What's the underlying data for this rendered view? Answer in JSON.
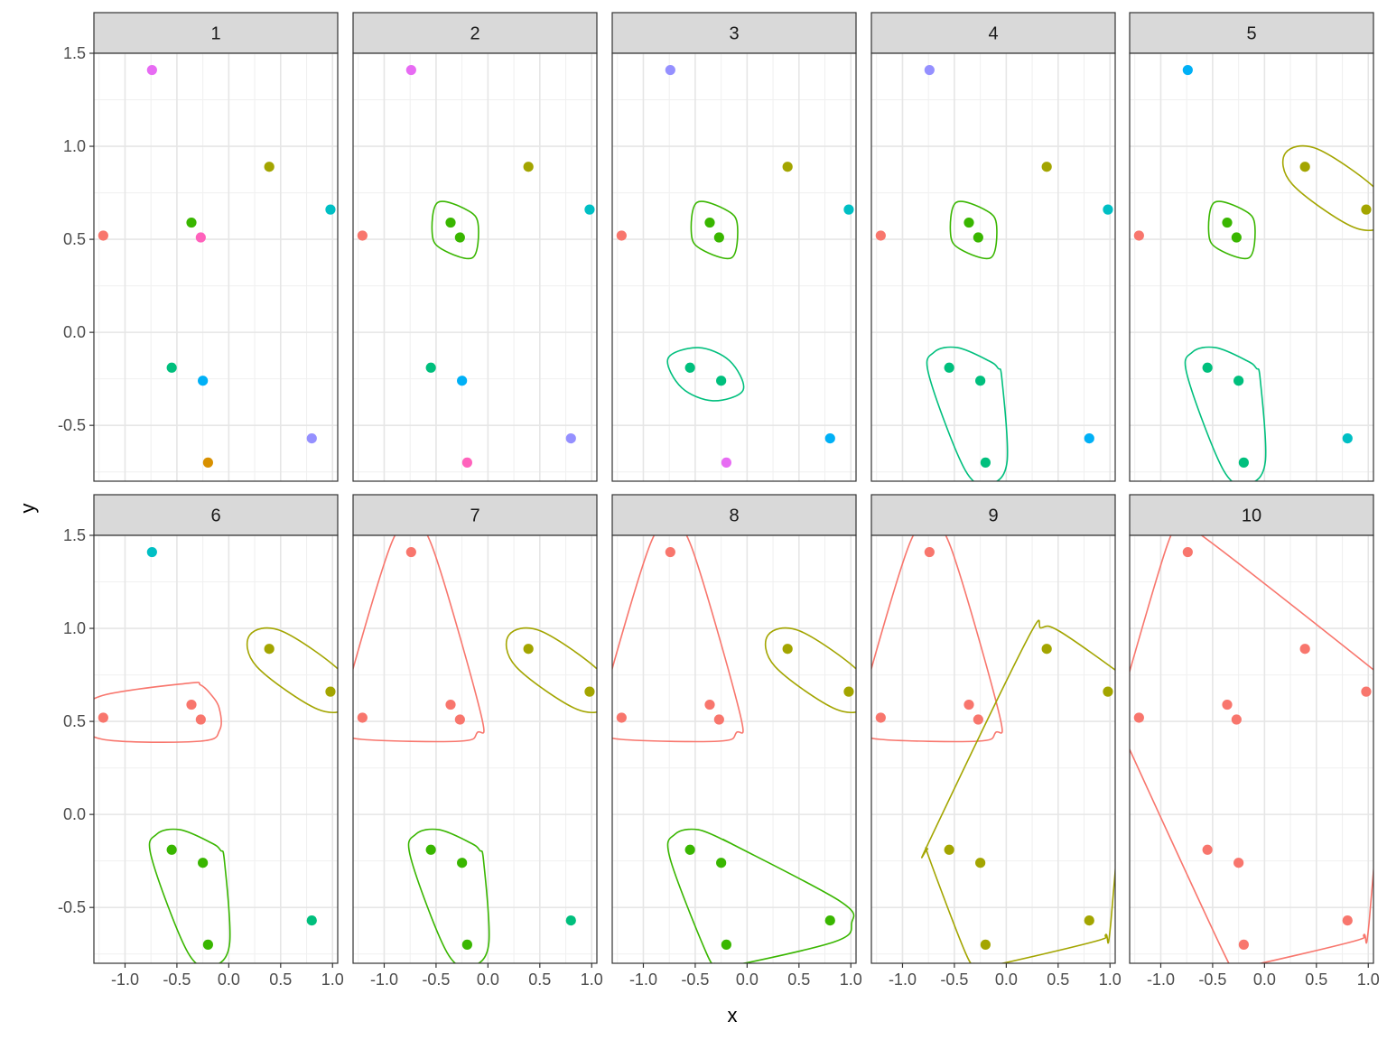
{
  "chart_data": {
    "type": "scatter",
    "facet_variable_values": [
      "1",
      "2",
      "3",
      "4",
      "5",
      "6",
      "7",
      "8",
      "9",
      "10"
    ],
    "xlabel": "x",
    "ylabel": "y",
    "xlim": [
      -1.3,
      1.05
    ],
    "ylim": [
      -0.8,
      1.5
    ],
    "x_ticks": [
      -1.0,
      -0.5,
      0.0,
      0.5,
      1.0
    ],
    "x_tick_labels": [
      "-1.0",
      "-0.5",
      "0.0",
      "0.5",
      "1.0"
    ],
    "y_ticks": [
      -0.5,
      0.0,
      0.5,
      1.0,
      1.5
    ],
    "y_tick_labels": [
      "-0.5",
      "0.0",
      "0.5",
      "1.0",
      "1.5"
    ],
    "grid": true,
    "legend": "none",
    "points": [
      {
        "x": -1.21,
        "y": 0.52
      },
      {
        "x": -0.74,
        "y": 1.41
      },
      {
        "x": -0.36,
        "y": 0.59
      },
      {
        "x": -0.27,
        "y": 0.51
      },
      {
        "x": -0.55,
        "y": -0.19
      },
      {
        "x": -0.25,
        "y": -0.26
      },
      {
        "x": -0.2,
        "y": -0.7
      },
      {
        "x": 0.39,
        "y": 0.89
      },
      {
        "x": 0.98,
        "y": 0.66
      },
      {
        "x": 0.8,
        "y": -0.57
      }
    ],
    "palette": [
      "#F8766D",
      "#A3A500",
      "#39B600",
      "#00BF7D",
      "#00BFC4",
      "#00B0F6",
      "#9590FF",
      "#E76BF3",
      "#FF62BC",
      "#D89000"
    ],
    "panels": [
      {
        "strip": "1",
        "groups": [
          {
            "members": [
              0
            ],
            "color": "#F8766D",
            "hull": false
          },
          {
            "members": [
              1
            ],
            "color": "#E76BF3",
            "hull": false
          },
          {
            "members": [
              2
            ],
            "color": "#39B600",
            "hull": false
          },
          {
            "members": [
              3
            ],
            "color": "#FF62BC",
            "hull": false
          },
          {
            "members": [
              4
            ],
            "color": "#00BF7D",
            "hull": false
          },
          {
            "members": [
              5
            ],
            "color": "#00B0F6",
            "hull": false
          },
          {
            "members": [
              6
            ],
            "color": "#D89000",
            "hull": false
          },
          {
            "members": [
              7
            ],
            "color": "#A3A500",
            "hull": false
          },
          {
            "members": [
              8
            ],
            "color": "#00BFC4",
            "hull": false
          },
          {
            "members": [
              9
            ],
            "color": "#9590FF",
            "hull": false
          }
        ]
      },
      {
        "strip": "2",
        "groups": [
          {
            "members": [
              0
            ],
            "color": "#F8766D",
            "hull": false
          },
          {
            "members": [
              1
            ],
            "color": "#E76BF3",
            "hull": false
          },
          {
            "members": [
              2,
              3
            ],
            "color": "#39B600",
            "hull": true
          },
          {
            "members": [
              4
            ],
            "color": "#00BF7D",
            "hull": false
          },
          {
            "members": [
              5
            ],
            "color": "#00B0F6",
            "hull": false
          },
          {
            "members": [
              6
            ],
            "color": "#FF62BC",
            "hull": false
          },
          {
            "members": [
              7
            ],
            "color": "#A3A500",
            "hull": false
          },
          {
            "members": [
              8
            ],
            "color": "#00BFC4",
            "hull": false
          },
          {
            "members": [
              9
            ],
            "color": "#9590FF",
            "hull": false
          }
        ]
      },
      {
        "strip": "3",
        "groups": [
          {
            "members": [
              0
            ],
            "color": "#F8766D",
            "hull": false
          },
          {
            "members": [
              1
            ],
            "color": "#9590FF",
            "hull": false
          },
          {
            "members": [
              2,
              3
            ],
            "color": "#39B600",
            "hull": true
          },
          {
            "members": [
              4,
              5
            ],
            "color": "#00BF7D",
            "hull": true
          },
          {
            "members": [
              6
            ],
            "color": "#E76BF3",
            "hull": false
          },
          {
            "members": [
              7
            ],
            "color": "#A3A500",
            "hull": false
          },
          {
            "members": [
              8
            ],
            "color": "#00BFC4",
            "hull": false
          },
          {
            "members": [
              9
            ],
            "color": "#00B0F6",
            "hull": false
          }
        ]
      },
      {
        "strip": "4",
        "groups": [
          {
            "members": [
              0
            ],
            "color": "#F8766D",
            "hull": false
          },
          {
            "members": [
              1
            ],
            "color": "#9590FF",
            "hull": false
          },
          {
            "members": [
              2,
              3
            ],
            "color": "#39B600",
            "hull": true
          },
          {
            "members": [
              4,
              5,
              6
            ],
            "color": "#00BF7D",
            "hull": true
          },
          {
            "members": [
              7
            ],
            "color": "#A3A500",
            "hull": false
          },
          {
            "members": [
              8
            ],
            "color": "#00BFC4",
            "hull": false
          },
          {
            "members": [
              9
            ],
            "color": "#00B0F6",
            "hull": false
          }
        ]
      },
      {
        "strip": "5",
        "groups": [
          {
            "members": [
              0
            ],
            "color": "#F8766D",
            "hull": false
          },
          {
            "members": [
              1
            ],
            "color": "#00B0F6",
            "hull": false
          },
          {
            "members": [
              2,
              3
            ],
            "color": "#39B600",
            "hull": true
          },
          {
            "members": [
              4,
              5,
              6
            ],
            "color": "#00BF7D",
            "hull": true
          },
          {
            "members": [
              7,
              8
            ],
            "color": "#A3A500",
            "hull": true
          },
          {
            "members": [
              9
            ],
            "color": "#00BFC4",
            "hull": false
          }
        ]
      },
      {
        "strip": "6",
        "groups": [
          {
            "members": [
              0,
              2,
              3
            ],
            "color": "#F8766D",
            "hull": true
          },
          {
            "members": [
              1
            ],
            "color": "#00BFC4",
            "hull": false
          },
          {
            "members": [
              4,
              5,
              6
            ],
            "color": "#39B600",
            "hull": true
          },
          {
            "members": [
              7,
              8
            ],
            "color": "#A3A500",
            "hull": true
          },
          {
            "members": [
              9
            ],
            "color": "#00BF7D",
            "hull": false
          }
        ]
      },
      {
        "strip": "7",
        "groups": [
          {
            "members": [
              0,
              1,
              2,
              3
            ],
            "color": "#F8766D",
            "hull": true
          },
          {
            "members": [
              4,
              5,
              6
            ],
            "color": "#39B600",
            "hull": true
          },
          {
            "members": [
              7,
              8
            ],
            "color": "#A3A500",
            "hull": true
          },
          {
            "members": [
              9
            ],
            "color": "#00BF7D",
            "hull": false
          }
        ]
      },
      {
        "strip": "8",
        "groups": [
          {
            "members": [
              0,
              1,
              2,
              3
            ],
            "color": "#F8766D",
            "hull": true
          },
          {
            "members": [
              4,
              5,
              6,
              9
            ],
            "color": "#39B600",
            "hull": true
          },
          {
            "members": [
              7,
              8
            ],
            "color": "#A3A500",
            "hull": true
          }
        ]
      },
      {
        "strip": "9",
        "groups": [
          {
            "members": [
              0,
              1,
              2,
              3
            ],
            "color": "#F8766D",
            "hull": true
          },
          {
            "members": [
              4,
              5,
              6,
              7,
              8,
              9
            ],
            "color": "#A3A500",
            "hull": true
          }
        ]
      },
      {
        "strip": "10",
        "groups": [
          {
            "members": [
              0,
              1,
              2,
              3,
              4,
              5,
              6,
              7,
              8,
              9
            ],
            "color": "#F8766D",
            "hull": true
          }
        ]
      }
    ]
  }
}
